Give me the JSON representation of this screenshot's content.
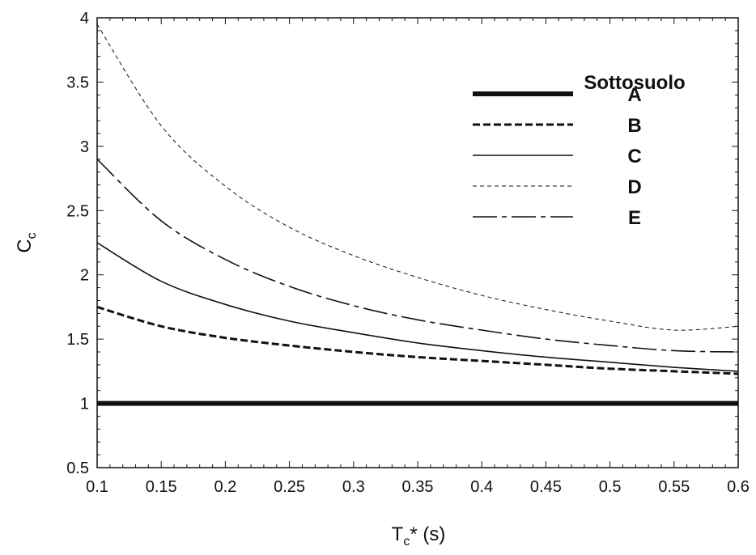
{
  "chart_data": {
    "type": "line",
    "title": "",
    "xlabel": {
      "main": "T",
      "sub": "c",
      "rest": "* (s)"
    },
    "ylabel": {
      "main": "C",
      "sub": "c"
    },
    "xlim": [
      0.1,
      0.6
    ],
    "ylim": [
      0.5,
      4
    ],
    "x_ticks": [
      0.1,
      0.15,
      0.2,
      0.25,
      0.3,
      0.35,
      0.4,
      0.45,
      0.5,
      0.55,
      0.6
    ],
    "x_tick_labels": [
      "0.1",
      "0.15",
      "0.2",
      "0.25",
      "0.3",
      "0.35",
      "0.4",
      "0.45",
      "0.5",
      "0.55",
      "0.6"
    ],
    "y_ticks": [
      0.5,
      1,
      1.5,
      2,
      2.5,
      3,
      3.5,
      4
    ],
    "y_tick_labels": [
      "0.5",
      "1",
      "1.5",
      "2",
      "2.5",
      "3",
      "3.5",
      "4"
    ],
    "grid": false,
    "legend": {
      "title": "Sottosuolo",
      "placement": "top-right"
    },
    "x": [
      0.1,
      0.15,
      0.2,
      0.25,
      0.3,
      0.35,
      0.4,
      0.45,
      0.5,
      0.55,
      0.6
    ],
    "series": [
      {
        "name": "A",
        "style": "thick-solid",
        "values": [
          1.0,
          1.0,
          1.0,
          1.0,
          1.0,
          1.0,
          1.0,
          1.0,
          1.0,
          1.0,
          1.0
        ]
      },
      {
        "name": "B",
        "style": "thick-dashed",
        "values": [
          1.75,
          1.6,
          1.51,
          1.45,
          1.4,
          1.36,
          1.33,
          1.3,
          1.27,
          1.25,
          1.23
        ]
      },
      {
        "name": "C",
        "style": "solid",
        "values": [
          2.25,
          1.95,
          1.77,
          1.64,
          1.55,
          1.47,
          1.41,
          1.36,
          1.32,
          1.28,
          1.25
        ]
      },
      {
        "name": "D",
        "style": "thin-dashed",
        "values": [
          3.95,
          3.16,
          2.69,
          2.37,
          2.15,
          1.98,
          1.84,
          1.73,
          1.64,
          1.57,
          1.6
        ]
      },
      {
        "name": "E",
        "style": "dash-dot",
        "values": [
          2.9,
          2.42,
          2.12,
          1.91,
          1.76,
          1.65,
          1.57,
          1.5,
          1.45,
          1.41,
          1.4
        ]
      }
    ]
  }
}
